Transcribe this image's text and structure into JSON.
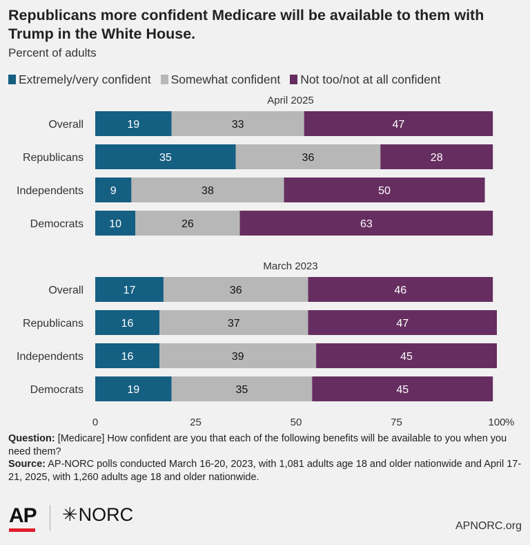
{
  "title": "Republicans more confident Medicare will be available to them with Trump in the White House.",
  "subtitle": "Percent of adults",
  "colors": {
    "extremely": "#155f82",
    "somewhat": "#b7b7b7",
    "not_too": "#662e60",
    "background": "#f1f1f1"
  },
  "footnote": {
    "question_label": "Question:",
    "question_text": "[Medicare] How confident are you that each of the following benefits will be available to you when you need them?",
    "source_label": "Source:",
    "source_text": "AP-NORC polls conducted March 16-20, 2023, with 1,081 adults age 18 and older nationwide and April 17-21, 2025, with 1,260 adults age 18 and older nationwide."
  },
  "logos": {
    "ap": "AP",
    "norc_star": "✳",
    "norc": "NORC"
  },
  "site": "APNORC.org",
  "chart_data": {
    "type": "bar",
    "orientation": "horizontal",
    "stacked": true,
    "series_names": [
      "Extremely/very confident",
      "Somewhat confident",
      "Not too/not at all confident"
    ],
    "xlim": [
      0,
      100
    ],
    "xticks": [
      "0",
      "25",
      "50",
      "75",
      "100"
    ],
    "x_unit": "%",
    "legend_position": "top",
    "grid": false,
    "groups": [
      {
        "label": "April 2025",
        "rows": [
          {
            "label": "Overall",
            "values": [
              19,
              33,
              47
            ]
          },
          {
            "label": "Republicans",
            "values": [
              35,
              36,
              28
            ]
          },
          {
            "label": "Independents",
            "values": [
              9,
              38,
              50
            ]
          },
          {
            "label": "Democrats",
            "values": [
              10,
              26,
              63
            ]
          }
        ]
      },
      {
        "label": "March 2023",
        "rows": [
          {
            "label": "Overall",
            "values": [
              17,
              36,
              46
            ]
          },
          {
            "label": "Republicans",
            "values": [
              16,
              37,
              47
            ]
          },
          {
            "label": "Independents",
            "values": [
              16,
              39,
              45
            ]
          },
          {
            "label": "Democrats",
            "values": [
              19,
              35,
              45
            ]
          }
        ]
      }
    ]
  }
}
